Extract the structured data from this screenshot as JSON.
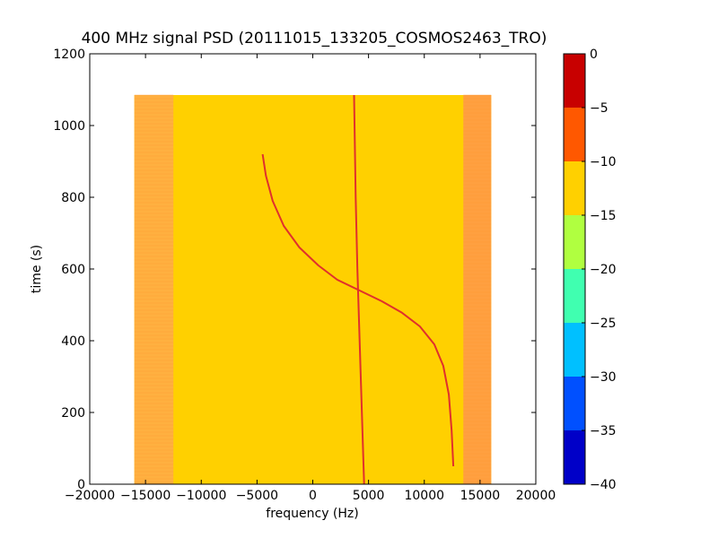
{
  "chart_data": {
    "type": "heatmap",
    "title": "400 MHz signal PSD (20111015_133205_COSMOS2463_TRO)",
    "xlabel": "frequency (Hz)",
    "ylabel": "time (s)",
    "xlim": [
      -20000,
      20000
    ],
    "ylim": [
      0,
      1200
    ],
    "xticks": [
      -20000,
      -15000,
      -10000,
      -5000,
      0,
      5000,
      10000,
      15000,
      20000
    ],
    "xtick_labels": [
      "−20000",
      "−15000",
      "−10000",
      "−5000",
      "0",
      "5000",
      "10000",
      "15000",
      "20000"
    ],
    "yticks": [
      0,
      200,
      400,
      600,
      800,
      1000,
      1200
    ],
    "ytick_labels": [
      "0",
      "200",
      "400",
      "600",
      "800",
      "1000",
      "1200"
    ],
    "data_extent": {
      "freq_min": -16000,
      "freq_max": 16000,
      "time_min": 0,
      "time_max": 1085
    },
    "background_level_band": [
      -15,
      -10
    ],
    "edge_level_band": [
      -10,
      -5
    ],
    "colorbar": {
      "levels": [
        -40,
        -35,
        -30,
        -25,
        -20,
        -15,
        -10,
        -5,
        0
      ],
      "tick_labels": [
        "−40",
        "−35",
        "−30",
        "−25",
        "−20",
        "−15",
        "−10",
        "−5",
        "0"
      ],
      "colors": [
        "#0000c8",
        "#0050ff",
        "#00c0ff",
        "#40ffb0",
        "#b0ff40",
        "#ffd000",
        "#ff5800",
        "#c80000"
      ]
    },
    "series": [
      {
        "kind": "doppler_curve",
        "color": "#e0302c",
        "points": [
          [
            12600,
            50
          ],
          [
            12450,
            150
          ],
          [
            12200,
            250
          ],
          [
            11700,
            330
          ],
          [
            10900,
            390
          ],
          [
            9600,
            440
          ],
          [
            8000,
            478
          ],
          [
            6200,
            510
          ],
          [
            4200,
            540
          ],
          [
            2200,
            570
          ],
          [
            500,
            610
          ],
          [
            -1200,
            660
          ],
          [
            -2600,
            720
          ],
          [
            -3600,
            790
          ],
          [
            -4200,
            860
          ],
          [
            -4500,
            920
          ]
        ]
      },
      {
        "kind": "carrier_line",
        "color": "#e0302c",
        "points": [
          [
            4600,
            0
          ],
          [
            4400,
            200
          ],
          [
            4200,
            400
          ],
          [
            4000,
            600
          ],
          [
            3850,
            800
          ],
          [
            3700,
            1085
          ]
        ]
      }
    ]
  }
}
